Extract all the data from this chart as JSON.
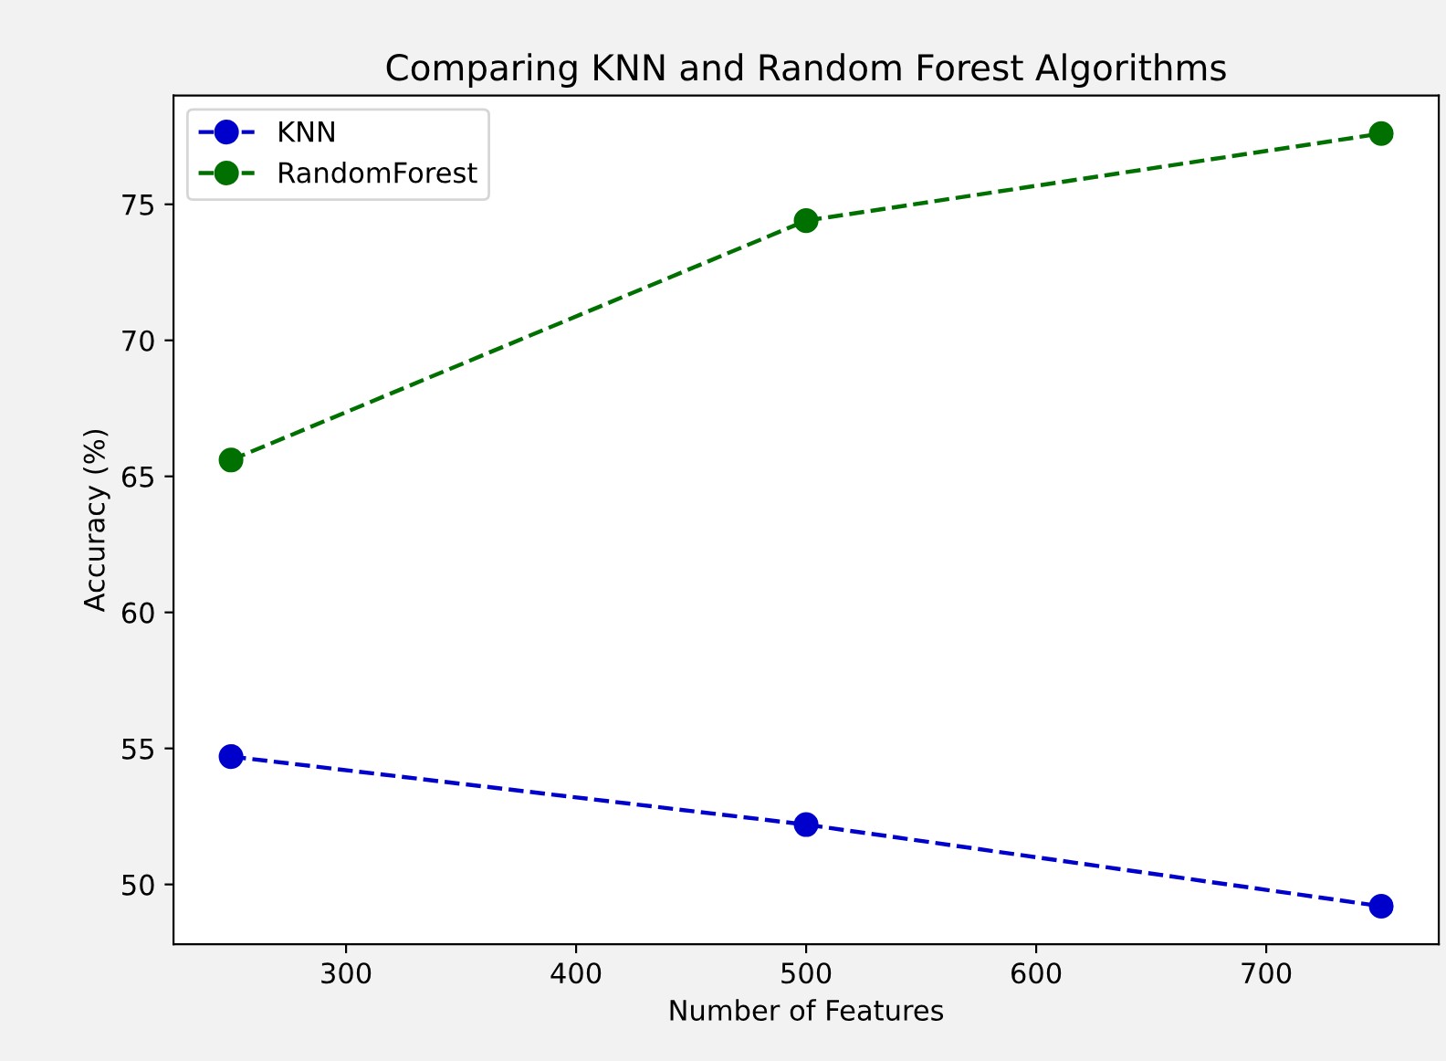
{
  "chart_data": {
    "type": "line",
    "title": "Comparing KNN and Random Forest Algorithms",
    "xlabel": "Number of Features",
    "ylabel": "Accuracy (%)",
    "x": [
      250,
      500,
      750
    ],
    "series": [
      {
        "name": "KNN",
        "color": "#0000cc",
        "values": [
          54.7,
          52.2,
          49.2
        ]
      },
      {
        "name": "RandomForest",
        "color": "#007000",
        "values": [
          65.6,
          74.4,
          77.6
        ]
      }
    ],
    "xlim": [
      225,
      775
    ],
    "xticks": [
      300,
      400,
      500,
      600,
      700
    ],
    "ylim": [
      47.8,
      79.0
    ],
    "yticks": [
      50,
      55,
      60,
      65,
      70,
      75
    ],
    "marker": "circle",
    "line_style": "dashed",
    "legend": "top left",
    "grid": false
  }
}
